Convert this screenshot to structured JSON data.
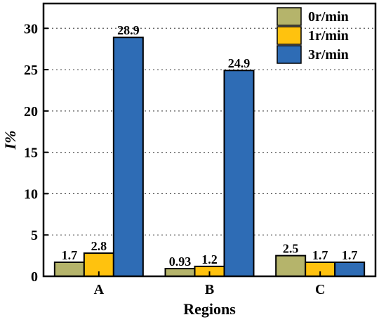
{
  "chart_data": {
    "type": "bar",
    "xlabel": "Regions",
    "ylabel": "I%",
    "categories": [
      "A",
      "B",
      "C"
    ],
    "ylim": [
      0,
      33
    ],
    "yticks": [
      0,
      5,
      10,
      15,
      20,
      25,
      30
    ],
    "grid": "horizontal dotted",
    "legend_position": "top-right",
    "series": [
      {
        "name": "0r/min",
        "color": "#b5b46b",
        "values": [
          1.7,
          0.93,
          2.5
        ],
        "labels": [
          "1.7",
          "0.93",
          "2.5"
        ]
      },
      {
        "name": "1r/min",
        "color": "#ffc20e",
        "values": [
          2.8,
          1.2,
          1.7
        ],
        "labels": [
          "2.8",
          "1.2",
          "1.7"
        ]
      },
      {
        "name": "3r/min",
        "color": "#2e6cb5",
        "values": [
          28.9,
          24.9,
          1.7
        ],
        "labels": [
          "28.9",
          "24.9",
          "1.7"
        ]
      }
    ]
  }
}
